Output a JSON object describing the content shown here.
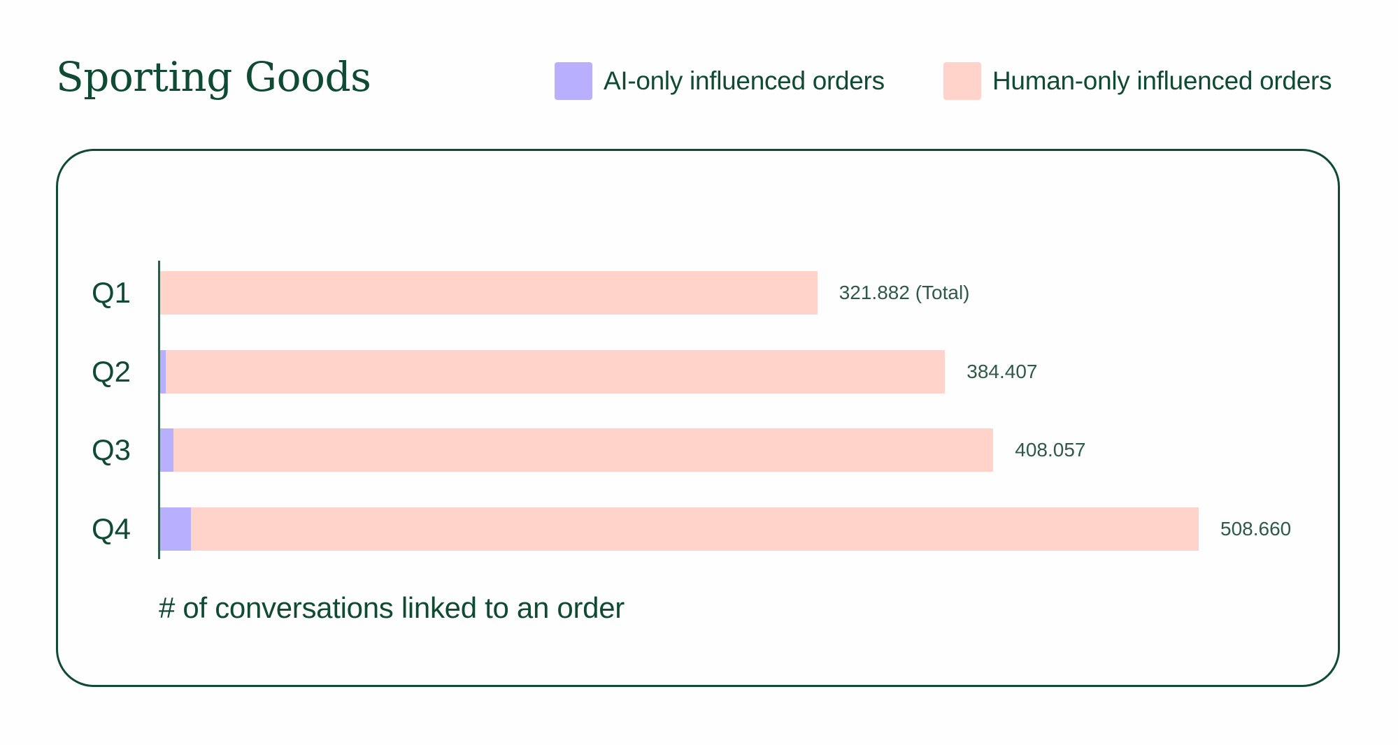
{
  "header": {
    "title": "Sporting Goods"
  },
  "legend": [
    {
      "label": "AI-only influenced orders",
      "color": "#b8b0ff"
    },
    {
      "label": "Human-only influenced orders",
      "color": "#ffd3c9"
    }
  ],
  "colors": {
    "ai": "#b8b0ff",
    "human": "#ffd3c9",
    "text": "#0f4a34",
    "axis": "#2f5a4a",
    "border": "#0f4a34"
  },
  "chart_data": {
    "type": "bar",
    "orientation": "horizontal",
    "stacked": true,
    "title": "Sporting Goods",
    "xlabel": "# of conversations linked to an order",
    "ylabel": "",
    "categories": [
      "Q1",
      "Q2",
      "Q3",
      "Q4"
    ],
    "series": [
      {
        "name": "AI-only influenced orders",
        "color": "#b8b0ff",
        "values": [
          0,
          2700,
          6500,
          15000
        ]
      },
      {
        "name": "Human-only influenced orders",
        "color": "#ffd3c9",
        "values": [
          321882,
          381707,
          401557,
          493660
        ]
      }
    ],
    "totals": [
      321882,
      384407,
      408057,
      508660
    ],
    "total_labels": [
      "321.882 (Total)",
      "384.407",
      "408.057",
      "508.660"
    ],
    "legend_position": "top-right",
    "grid": false,
    "xlim": [
      0,
      540000
    ]
  },
  "rows": [
    {
      "label": "Q1",
      "total_label": "321.882 (Total)",
      "total": 321882,
      "ai": 0
    },
    {
      "label": "Q2",
      "total_label": "384.407",
      "total": 384407,
      "ai": 2700
    },
    {
      "label": "Q3",
      "total_label": "408.057",
      "total": 408057,
      "ai": 6500
    },
    {
      "label": "Q4",
      "total_label": "508.660",
      "total": 508660,
      "ai": 15000
    }
  ],
  "axis": {
    "xlabel": "# of conversations linked to an order"
  }
}
